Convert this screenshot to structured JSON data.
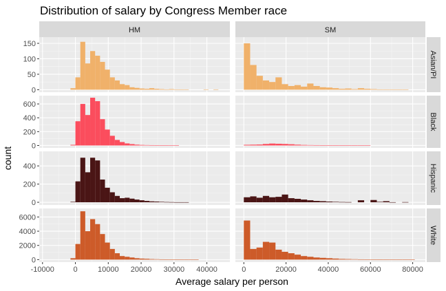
{
  "chart_data": {
    "type": "bar",
    "title": "Distribution of salary by Congress Member race",
    "xlabel": "Average salary per person",
    "ylabel": "count",
    "grid": true,
    "colors": {
      "background": "#ffffff",
      "panel": "#ebebeb",
      "grid_major": "#ffffff",
      "strip": "#d9d9d9",
      "tick": "#4d4d4d"
    },
    "columns": [
      {
        "label": "HM",
        "xlim": [
          -11000,
          47000
        ],
        "xticks": [
          -10000,
          0,
          10000,
          20000,
          30000,
          40000
        ],
        "xtick_labels": [
          "-10000",
          "0",
          "10000",
          "20000",
          "30000",
          "40000"
        ]
      },
      {
        "label": "SM",
        "xlim": [
          -4000,
          86000
        ],
        "xticks": [
          0,
          20000,
          40000,
          60000,
          80000
        ],
        "xtick_labels": [
          "0",
          "20000",
          "40000",
          "60000",
          "80000"
        ]
      }
    ],
    "rows": [
      {
        "label": "Asian/PI",
        "color": "#f0b16a",
        "yticks": [
          0,
          50,
          100,
          150
        ],
        "ytick_labels": [
          "0",
          "50",
          "100",
          "150"
        ],
        "ylim": [
          -8,
          170
        ]
      },
      {
        "label": "Black",
        "color": "#fb4d5d",
        "yticks": [
          0,
          200,
          400,
          600
        ],
        "ytick_labels": [
          "0",
          "200",
          "400",
          "600"
        ],
        "ylim": [
          -35,
          720
        ]
      },
      {
        "label": "Hispanic",
        "color": "#4a1515",
        "yticks": [
          0,
          200,
          400
        ],
        "ytick_labels": [
          "0",
          "200",
          "400"
        ],
        "ylim": [
          -30,
          560
        ]
      },
      {
        "label": "White",
        "color": "#cd5b29",
        "yticks": [
          0,
          2000,
          4000,
          6000
        ],
        "ytick_labels": [
          "0",
          "2000",
          "4000",
          "6000"
        ],
        "ylim": [
          -350,
          7200
        ]
      }
    ],
    "panels": [
      {
        "row": 0,
        "col": 0,
        "x_start": -1500,
        "bin_width": 1500,
        "values": [
          5,
          40,
          155,
          85,
          125,
          110,
          90,
          65,
          40,
          30,
          18,
          15,
          8,
          6,
          4,
          3,
          5,
          3,
          2,
          1,
          2,
          1,
          1,
          1,
          0,
          0,
          0,
          1,
          0,
          1
        ]
      },
      {
        "row": 0,
        "col": 1,
        "x_start": 0,
        "bin_width": 3000,
        "values": [
          150,
          80,
          45,
          30,
          25,
          40,
          18,
          12,
          15,
          10,
          20,
          12,
          8,
          7,
          5,
          3,
          4,
          2,
          5,
          3,
          2,
          1,
          1,
          1,
          1,
          1,
          0,
          0
        ]
      },
      {
        "row": 1,
        "col": 0,
        "x_start": -1500,
        "bin_width": 1500,
        "values": [
          10,
          350,
          600,
          440,
          690,
          640,
          380,
          230,
          140,
          80,
          50,
          30,
          20,
          12,
          8,
          6,
          5,
          3,
          2,
          1,
          1,
          1
        ]
      },
      {
        "row": 1,
        "col": 1,
        "x_start": 0,
        "bin_width": 3000,
        "values": [
          10,
          12,
          14,
          22,
          28,
          25,
          22,
          18,
          12,
          8,
          6,
          5,
          4,
          3,
          2,
          2,
          1,
          1,
          1,
          1,
          0,
          0,
          0,
          0,
          0,
          0,
          0
        ]
      },
      {
        "row": 2,
        "col": 0,
        "x_start": -1500,
        "bin_width": 1500,
        "values": [
          5,
          230,
          490,
          330,
          490,
          460,
          250,
          160,
          110,
          70,
          45,
          50,
          40,
          30,
          22,
          15,
          10,
          8,
          5,
          3,
          2,
          1,
          1,
          1
        ]
      },
      {
        "row": 2,
        "col": 1,
        "x_start": 0,
        "bin_width": 3000,
        "values": [
          55,
          65,
          50,
          70,
          55,
          60,
          85,
          45,
          38,
          30,
          22,
          15,
          12,
          8,
          5,
          3,
          2,
          0,
          22,
          0,
          25,
          5,
          12,
          1,
          0,
          2,
          0
        ]
      },
      {
        "row": 3,
        "col": 0,
        "x_start": -1500,
        "bin_width": 1500,
        "values": [
          200,
          2200,
          6800,
          4000,
          5700,
          5000,
          3600,
          2400,
          1500,
          900,
          500,
          400,
          300,
          200,
          150,
          120,
          80,
          60,
          40,
          30,
          20,
          15,
          10,
          5,
          3,
          2
        ]
      },
      {
        "row": 3,
        "col": 1,
        "x_start": 0,
        "bin_width": 3000,
        "values": [
          5500,
          1500,
          1700,
          2500,
          2400,
          1400,
          1100,
          900,
          700,
          500,
          400,
          300,
          250,
          200,
          150,
          100,
          80,
          60,
          40,
          30,
          20,
          15,
          10,
          5,
          3,
          2,
          1,
          0
        ]
      }
    ]
  }
}
